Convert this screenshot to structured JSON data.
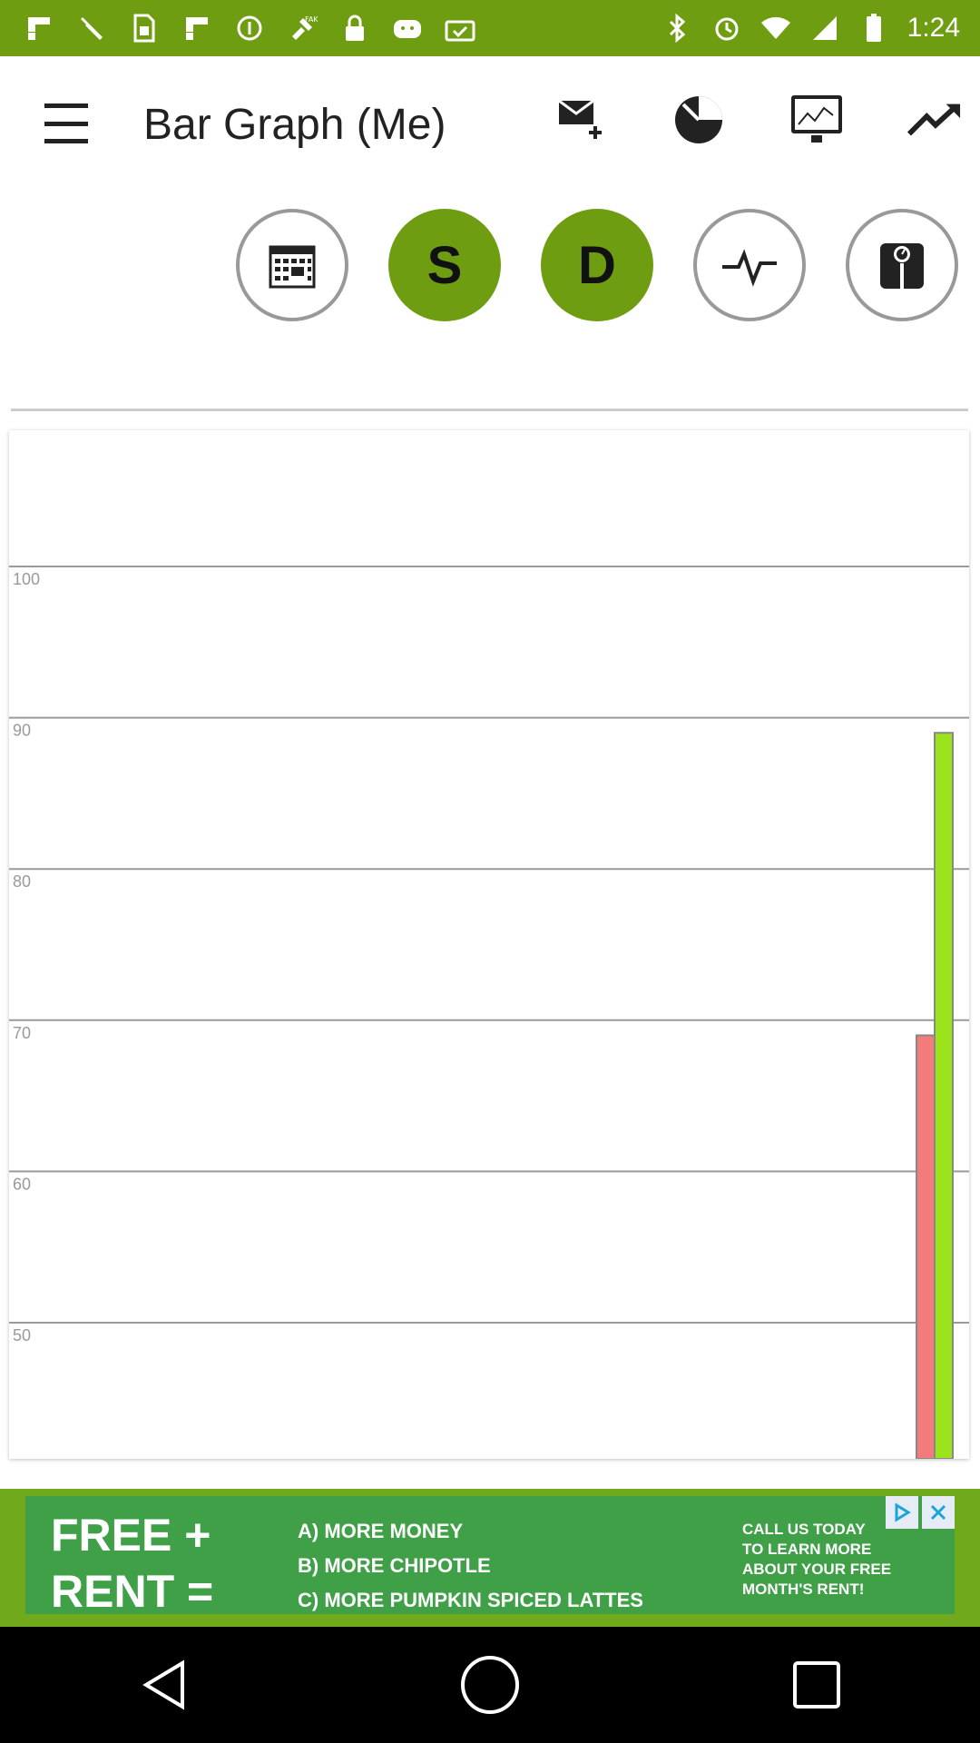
{
  "status_bar": {
    "time": "1:24",
    "left_icons": [
      "flipboard-icon",
      "wrench-icon",
      "sim-card-icon",
      "flipboard-icon",
      "info-icon",
      "fake-gps-icon",
      "lock-icon",
      "android-robot-icon",
      "briefcase-check-icon"
    ],
    "right_icons": [
      "bluetooth-icon",
      "alarm-icon",
      "wifi-icon",
      "cellular-signal-icon",
      "battery-icon"
    ],
    "background": "#6f9d12"
  },
  "app_bar": {
    "title": "Bar Graph (Me)",
    "actions": [
      "mail-add-icon",
      "timer-icon",
      "monitor-chart-icon",
      "trending-up-icon"
    ]
  },
  "circle_buttons": [
    {
      "name": "calendar",
      "label": "",
      "style": "outline",
      "icon": "calendar-icon"
    },
    {
      "name": "s",
      "label": "S",
      "style": "filled",
      "icon": ""
    },
    {
      "name": "d",
      "label": "D",
      "style": "filled",
      "icon": ""
    },
    {
      "name": "pulse",
      "label": "",
      "style": "outline",
      "icon": "pulse-icon"
    },
    {
      "name": "scale",
      "label": "",
      "style": "outline",
      "icon": "weight-scale-icon"
    }
  ],
  "chart_data": {
    "type": "bar",
    "title": "",
    "xlabel": "",
    "ylabel": "",
    "y_ticks": [
      50,
      60,
      70,
      80,
      90,
      100
    ],
    "ylim": [
      41,
      109
    ],
    "series": [
      {
        "color": "#f47b7b",
        "values": [
          69
        ]
      },
      {
        "color": "#9be31a",
        "values": [
          89
        ]
      }
    ],
    "grid": true
  },
  "ad": {
    "left_line1": "FREE +",
    "left_line2": "RENT =",
    "mid_lines": [
      "A) MORE MONEY",
      "B) MORE CHIPOTLE",
      "C) MORE PUMPKIN SPICED LATTES"
    ],
    "right_lines": [
      "CALL US TODAY",
      "TO LEARN MORE",
      "ABOUT YOUR FREE",
      "MONTH'S RENT!"
    ],
    "badges": [
      "ad-choices-icon",
      "close-icon"
    ]
  },
  "nav_bar": {
    "buttons": [
      "back-icon",
      "home-icon",
      "recents-icon"
    ]
  }
}
